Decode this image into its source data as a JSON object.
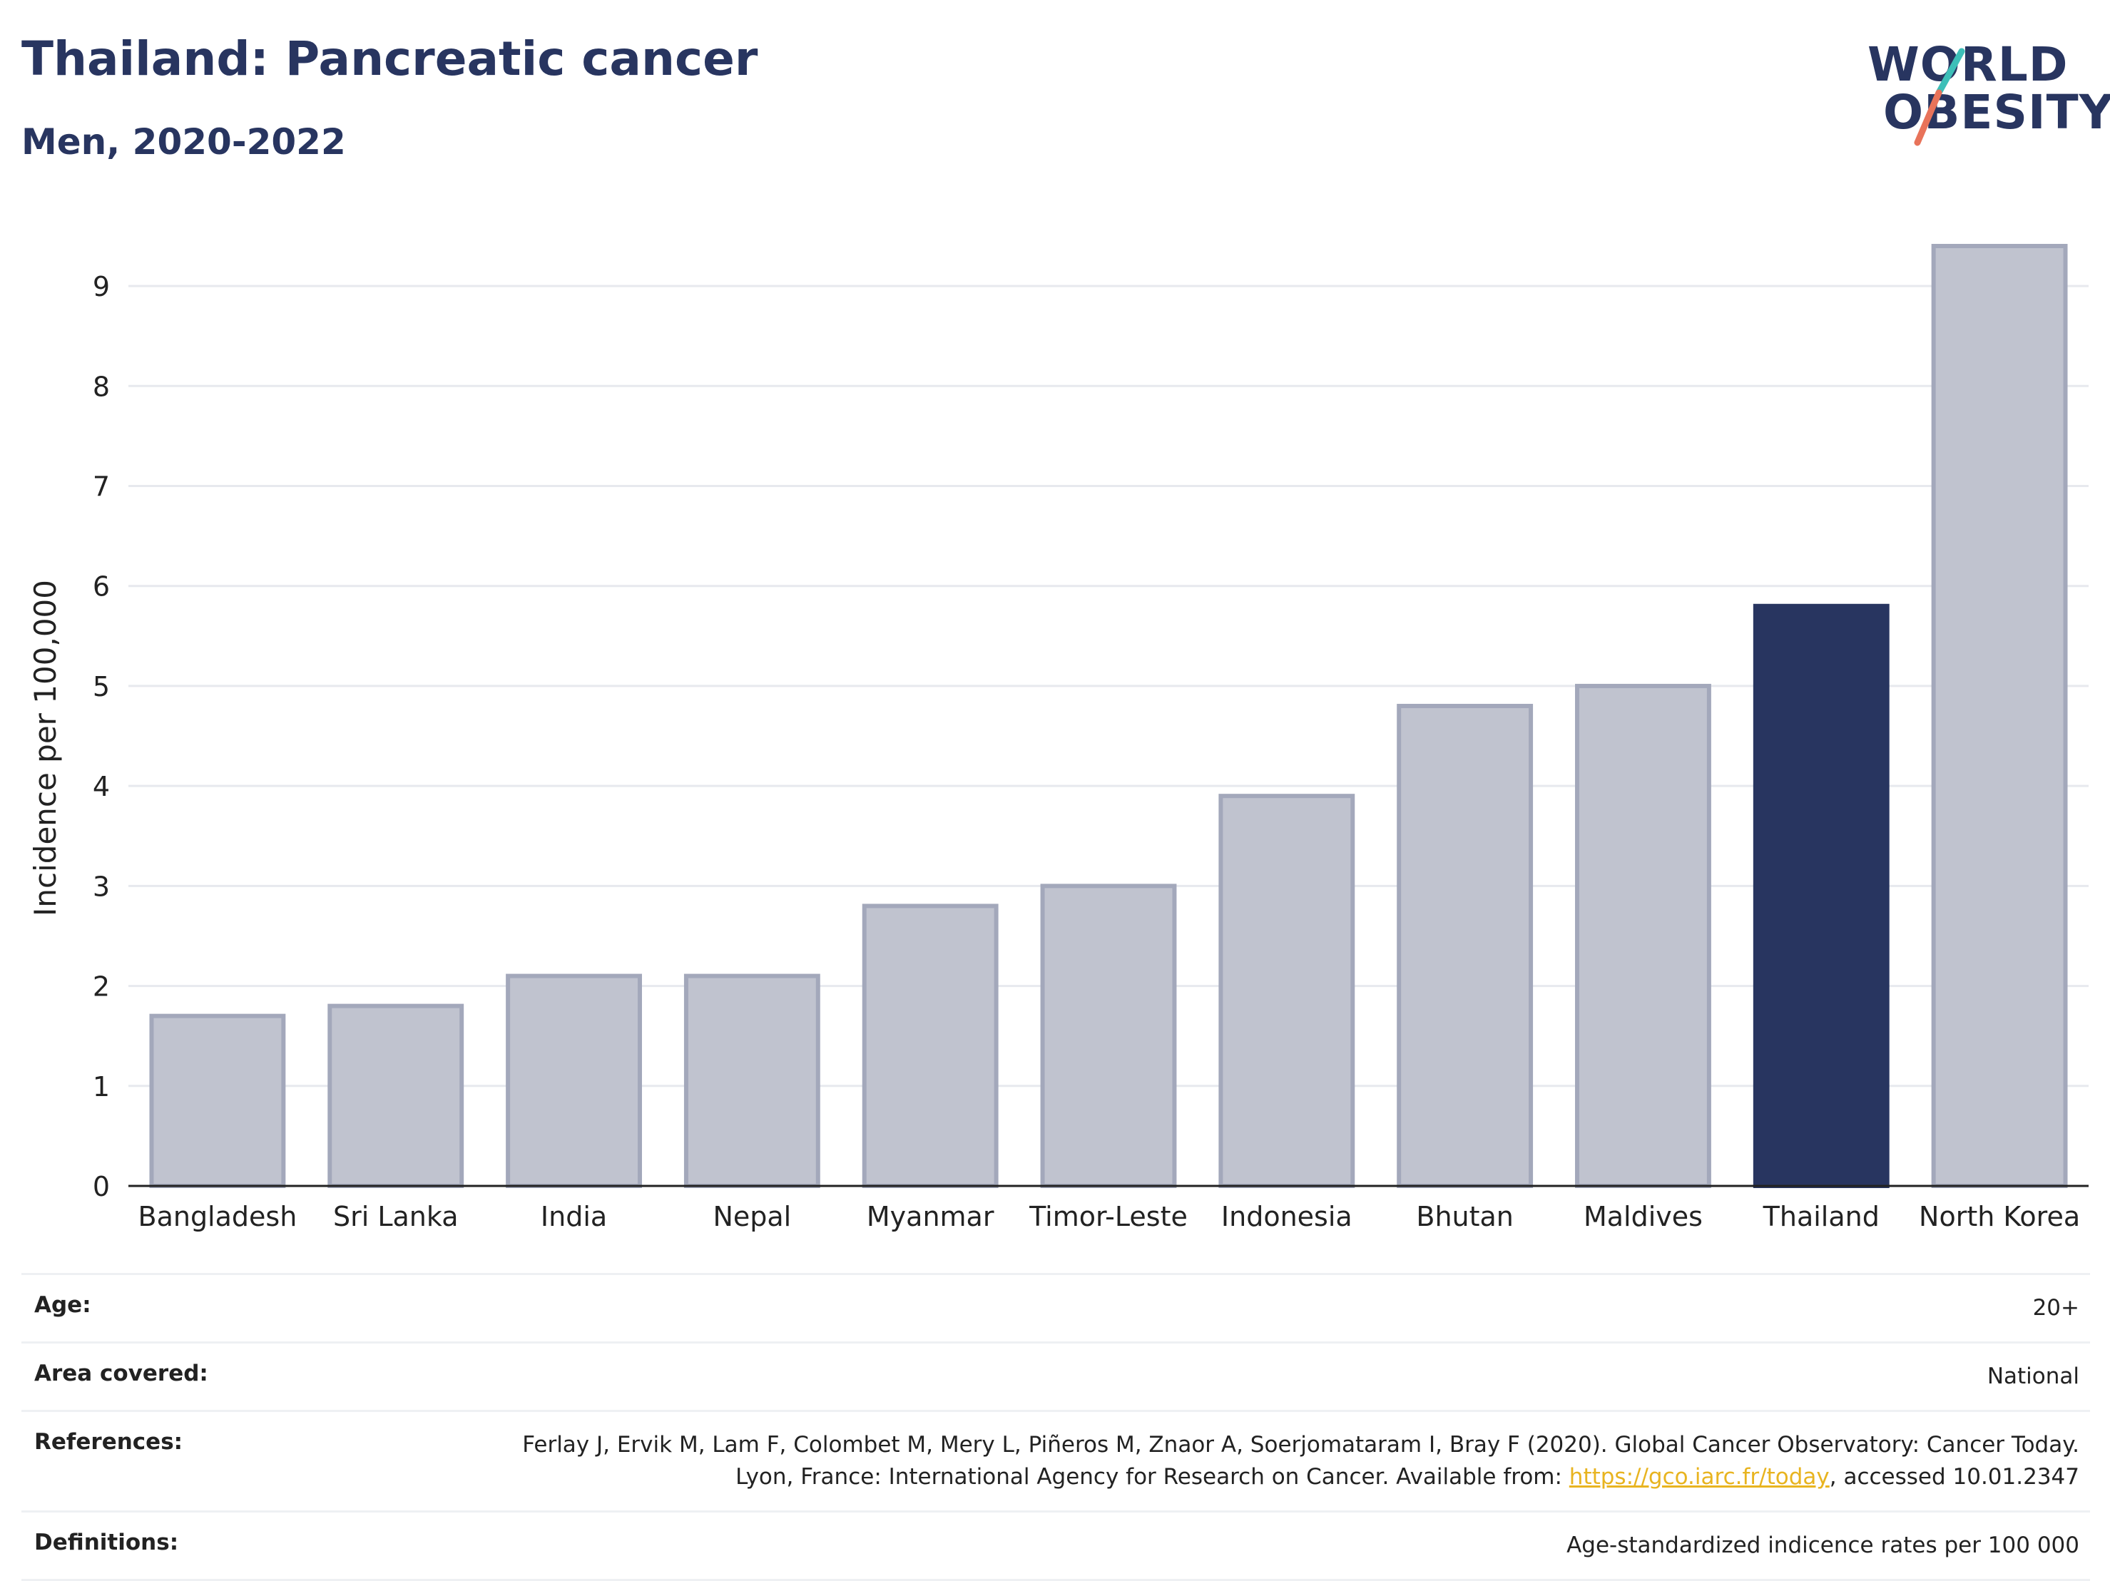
{
  "header": {
    "title": "Thailand: Pancreatic cancer",
    "subtitle": "Men, 2020-2022"
  },
  "logo": {
    "line1": "WORLD",
    "line2": "OBESITY",
    "slash_colors": [
      "#3dbfb8",
      "#e8735a"
    ]
  },
  "chart_data": {
    "type": "bar",
    "categories": [
      "Bangladesh",
      "Sri Lanka",
      "India",
      "Nepal",
      "Myanmar",
      "Timor-Leste",
      "Indonesia",
      "Bhutan",
      "Maldives",
      "Thailand",
      "North Korea"
    ],
    "values": [
      1.7,
      1.8,
      2.1,
      2.1,
      2.8,
      3.0,
      3.9,
      4.8,
      5.0,
      5.8,
      9.4
    ],
    "highlight": "Thailand",
    "ylabel": "Incidence per 100,000",
    "ylim": [
      0,
      9.4
    ],
    "yticks": [
      0,
      1,
      2,
      3,
      4,
      5,
      6,
      7,
      8,
      9
    ],
    "grid": true,
    "colors": {
      "bar": "#c0c3cf",
      "bar_border": "#a3a8bb",
      "highlight": "#283560",
      "grid": "#e7e9ee",
      "axis": "#222222"
    }
  },
  "meta": {
    "age_label": "Age:",
    "age_value": "20+",
    "area_label": "Area covered:",
    "area_value": "National",
    "references_label": "References:",
    "references_text_1": "Ferlay J, Ervik M, Lam F, Colombet M, Mery L, Piñeros M, Znaor A, Soerjomataram I, Bray F (2020). Global Cancer Observatory: Cancer Today. Lyon, France: International Agency for Research on Cancer. Available from: ",
    "references_link": "https://gco.iarc.fr/today",
    "references_text_2": ", accessed 10.01.2347",
    "definitions_label": "Definitions:",
    "definitions_value": "Age-standardized indicence rates per 100 000"
  }
}
